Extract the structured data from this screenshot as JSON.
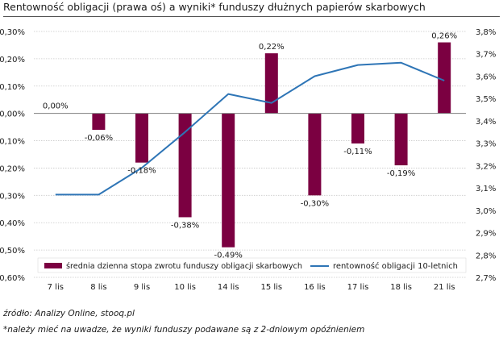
{
  "title": "Rentowność obligacji (prawa oś) a wyniki* funduszy dłużnych papierów skarbowych",
  "source": "źródło: Analizy Online, stooq.pl",
  "footnote": "*należy mieć na uwadze, że wyniki funduszy podawane są z 2-dniowym opóźnieniem",
  "colors": {
    "bar": "#7b0041",
    "line": "#2e75b6",
    "grid": "#c8c8c8",
    "axis": "#7f7f7f"
  },
  "chart_data": {
    "type": "bar+line",
    "categories": [
      "7 lis",
      "8 lis",
      "9 lis",
      "10 lis",
      "14 lis",
      "15 lis",
      "16 lis",
      "17 lis",
      "18 lis",
      "21 lis"
    ],
    "series": [
      {
        "name": "średnia dzienna stopa zwrotu funduszy obligacji skarbowych",
        "type": "bar",
        "axis": "left",
        "values": [
          0.0,
          -0.06,
          -0.18,
          -0.38,
          -0.49,
          0.22,
          -0.3,
          -0.11,
          -0.19,
          0.26
        ],
        "labels": [
          "0,00%",
          "-0,06%",
          "-0,18%",
          "-0,38%",
          "-0,49%",
          "0,22%",
          "-0,30%",
          "-0,11%",
          "-0,19%",
          "0,26%"
        ]
      },
      {
        "name": "rentowność obligacji 10-letnich",
        "type": "line",
        "axis": "right",
        "values": [
          3.07,
          3.07,
          3.19,
          3.35,
          3.52,
          3.48,
          3.6,
          3.65,
          3.66,
          3.58
        ]
      }
    ],
    "y_left": {
      "min": -0.6,
      "max": 0.3,
      "step": 0.1,
      "ticks": [
        "0,30%",
        "0,20%",
        "0,10%",
        "0,00%",
        "-0,10%",
        "-0,20%",
        "-0,30%",
        "-0,40%",
        "-0,50%",
        "-0,60%"
      ]
    },
    "y_right": {
      "min": 2.7,
      "max": 3.8,
      "step": 0.1,
      "ticks": [
        "3,8%",
        "3,7%",
        "3,6%",
        "3,5%",
        "3,4%",
        "3,3%",
        "3,2%",
        "3,1%",
        "3,0%",
        "2,9%",
        "2,8%",
        "2,7%"
      ]
    },
    "grid": true,
    "legend_position": "bottom"
  }
}
